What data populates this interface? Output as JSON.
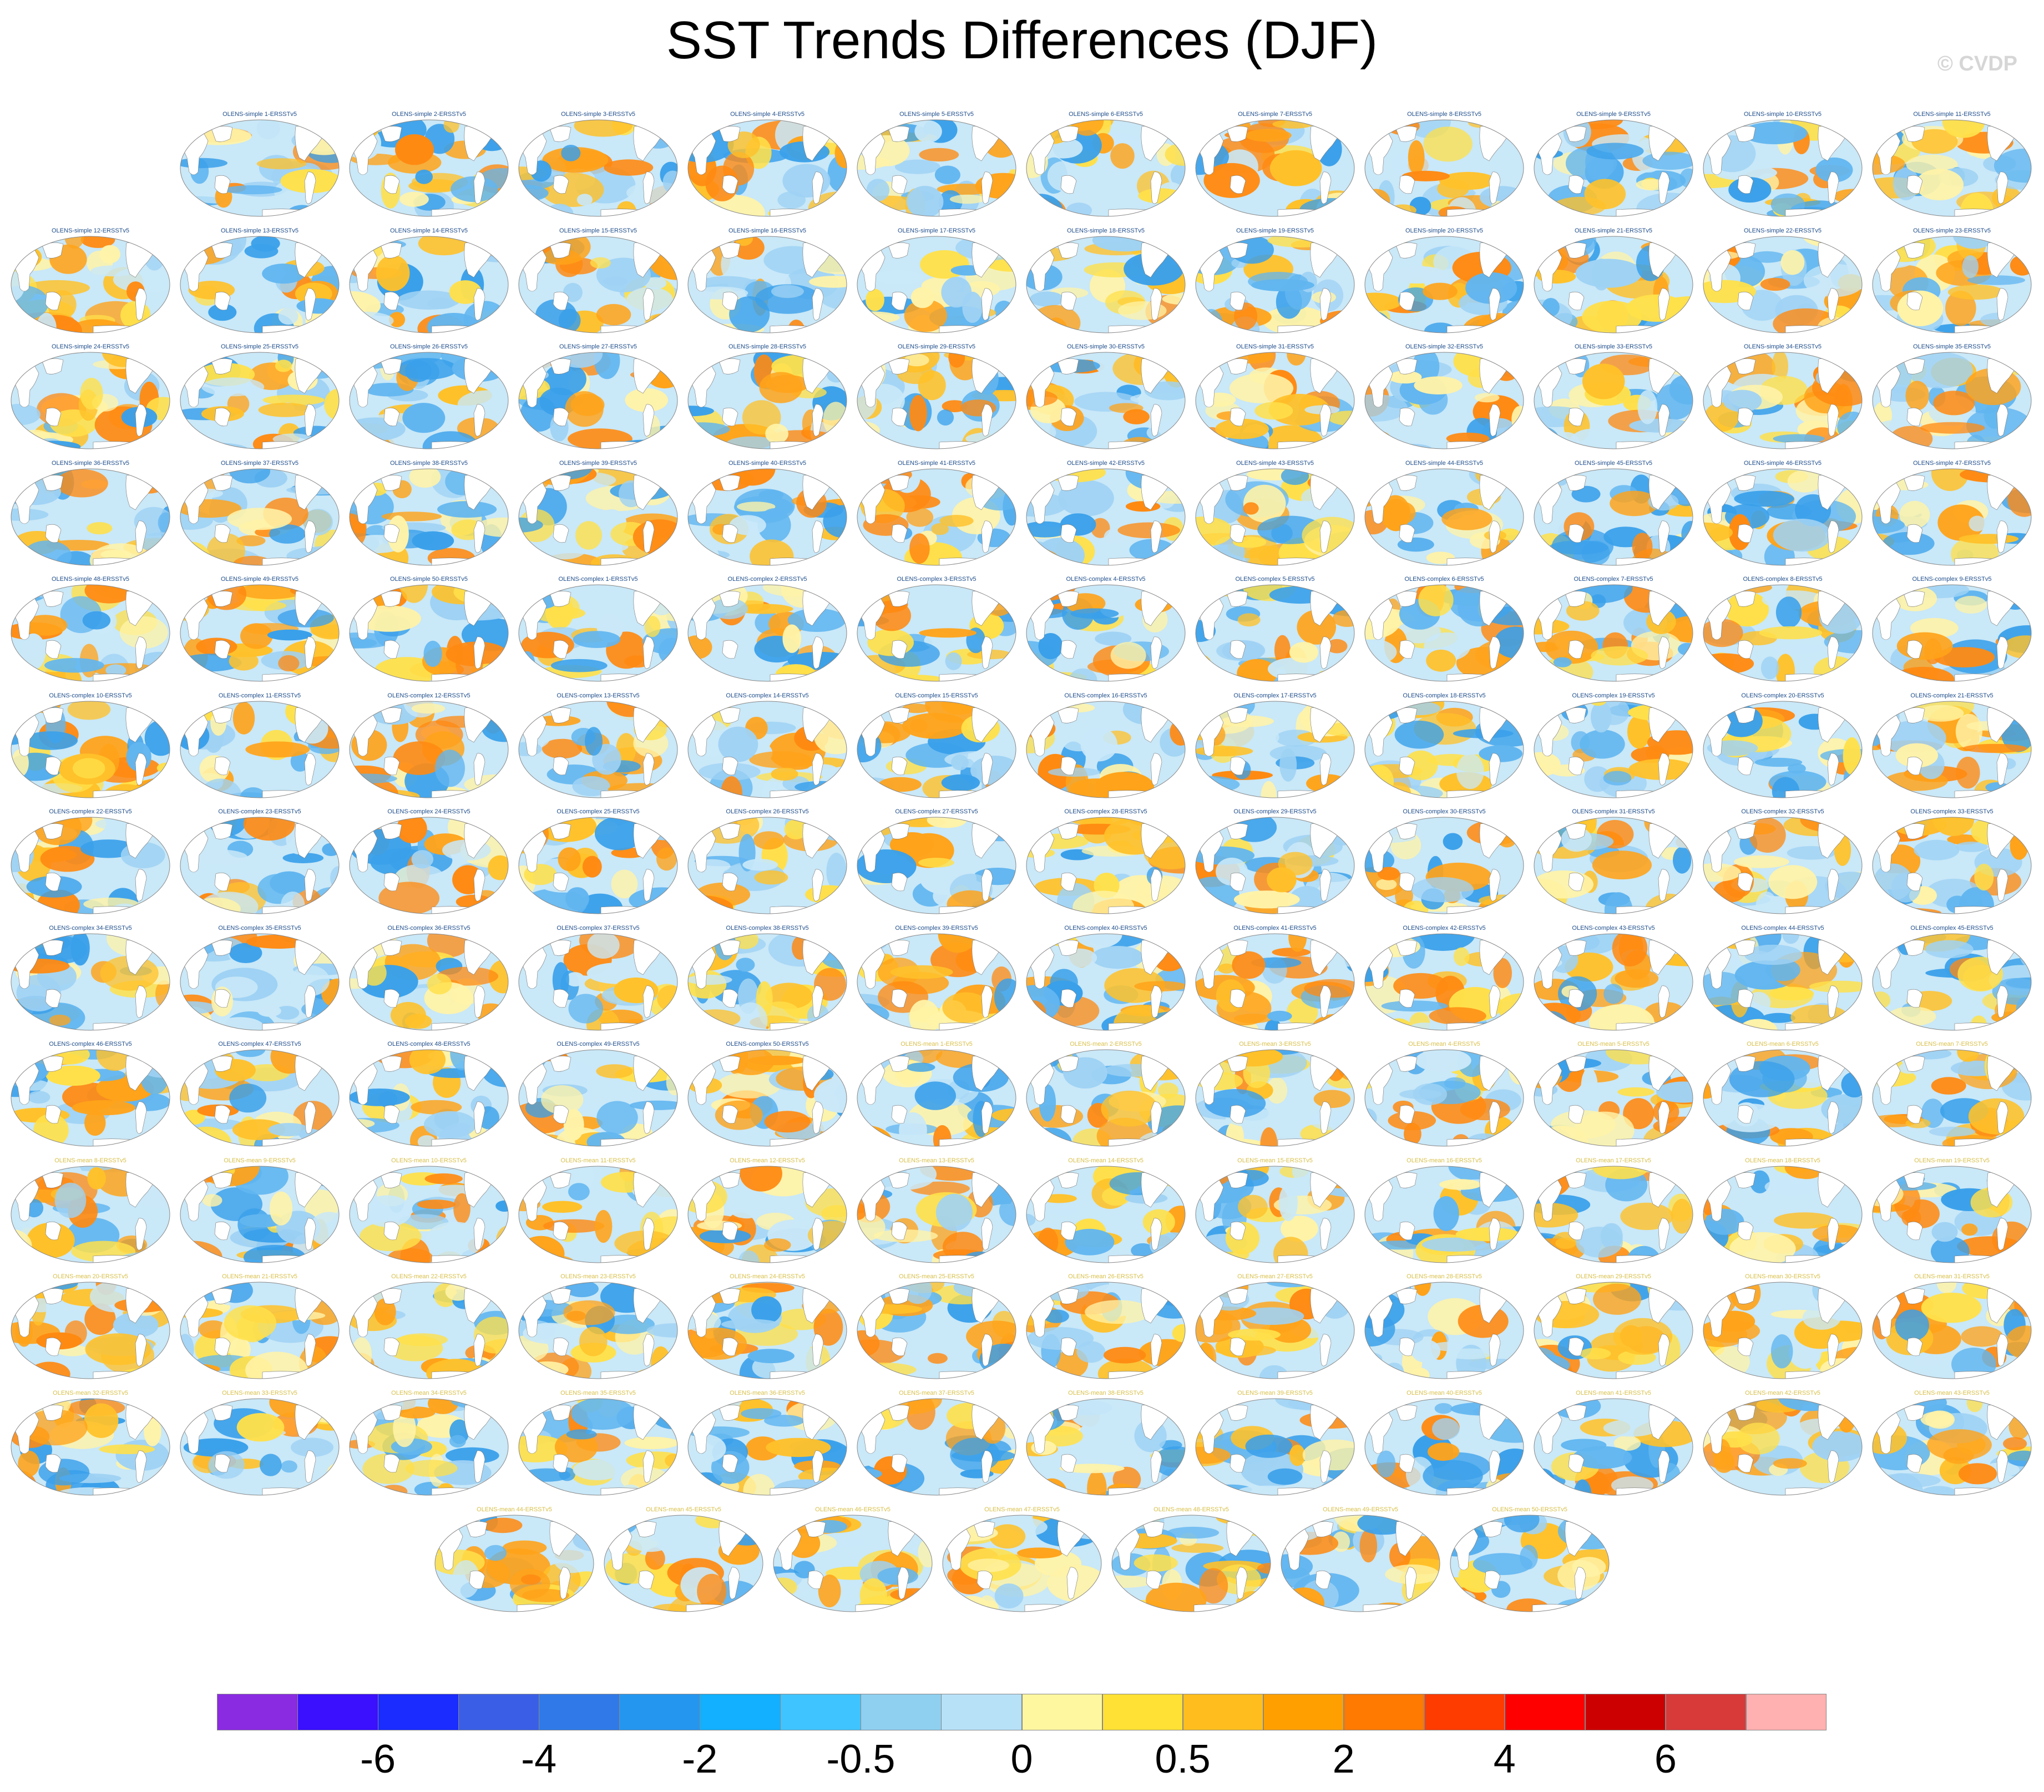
{
  "title": "SST Trends Differences (DJF)",
  "watermark": "© CVDP",
  "map_type": "global-ellipse-sst-trend-difference",
  "panels": [
    "OLENS-simple 1-ERSSTv5",
    "OLENS-simple 2-ERSSTv5",
    "OLENS-simple 3-ERSSTv5",
    "OLENS-simple 4-ERSSTv5",
    "OLENS-simple 5-ERSSTv5",
    "OLENS-simple 6-ERSSTv5",
    "OLENS-simple 7-ERSSTv5",
    "OLENS-simple 8-ERSSTv5",
    "OLENS-simple 9-ERSSTv5",
    "OLENS-simple 10-ERSSTv5",
    "OLENS-simple 11-ERSSTv5",
    "OLENS-simple 12-ERSSTv5",
    "OLENS-simple 13-ERSSTv5",
    "OLENS-simple 14-ERSSTv5",
    "OLENS-simple 15-ERSSTv5",
    "OLENS-simple 16-ERSSTv5",
    "OLENS-simple 17-ERSSTv5",
    "OLENS-simple 18-ERSSTv5",
    "OLENS-simple 19-ERSSTv5",
    "OLENS-simple 20-ERSSTv5",
    "OLENS-simple 21-ERSSTv5",
    "OLENS-simple 22-ERSSTv5",
    "OLENS-simple 23-ERSSTv5",
    "OLENS-simple 24-ERSSTv5",
    "OLENS-simple 25-ERSSTv5",
    "OLENS-simple 26-ERSSTv5",
    "OLENS-simple 27-ERSSTv5",
    "OLENS-simple 28-ERSSTv5",
    "OLENS-simple 29-ERSSTv5",
    "OLENS-simple 30-ERSSTv5",
    "OLENS-simple 31-ERSSTv5",
    "OLENS-simple 32-ERSSTv5",
    "OLENS-simple 33-ERSSTv5",
    "OLENS-simple 34-ERSSTv5",
    "OLENS-simple 35-ERSSTv5",
    "OLENS-simple 36-ERSSTv5",
    "OLENS-simple 37-ERSSTv5",
    "OLENS-simple 38-ERSSTv5",
    "OLENS-simple 39-ERSSTv5",
    "OLENS-simple 40-ERSSTv5",
    "OLENS-simple 41-ERSSTv5",
    "OLENS-simple 42-ERSSTv5",
    "OLENS-simple 43-ERSSTv5",
    "OLENS-simple 44-ERSSTv5",
    "OLENS-simple 45-ERSSTv5",
    "OLENS-simple 46-ERSSTv5",
    "OLENS-simple 47-ERSSTv5",
    "OLENS-simple 48-ERSSTv5",
    "OLENS-simple 49-ERSSTv5",
    "OLENS-simple 50-ERSSTv5",
    "OLENS-complex 1-ERSSTv5",
    "OLENS-complex 2-ERSSTv5",
    "OLENS-complex 3-ERSSTv5",
    "OLENS-complex 4-ERSSTv5",
    "OLENS-complex 5-ERSSTv5",
    "OLENS-complex 6-ERSSTv5",
    "OLENS-complex 7-ERSSTv5",
    "OLENS-complex 8-ERSSTv5",
    "OLENS-complex 9-ERSSTv5",
    "OLENS-complex 10-ERSSTv5",
    "OLENS-complex 11-ERSSTv5",
    "OLENS-complex 12-ERSSTv5",
    "OLENS-complex 13-ERSSTv5",
    "OLENS-complex 14-ERSSTv5",
    "OLENS-complex 15-ERSSTv5",
    "OLENS-complex 16-ERSSTv5",
    "OLENS-complex 17-ERSSTv5",
    "OLENS-complex 18-ERSSTv5",
    "OLENS-complex 19-ERSSTv5",
    "OLENS-complex 20-ERSSTv5",
    "OLENS-complex 21-ERSSTv5",
    "OLENS-complex 22-ERSSTv5",
    "OLENS-complex 23-ERSSTv5",
    "OLENS-complex 24-ERSSTv5",
    "OLENS-complex 25-ERSSTv5",
    "OLENS-complex 26-ERSSTv5",
    "OLENS-complex 27-ERSSTv5",
    "OLENS-complex 28-ERSSTv5",
    "OLENS-complex 29-ERSSTv5",
    "OLENS-complex 30-ERSSTv5",
    "OLENS-complex 31-ERSSTv5",
    "OLENS-complex 32-ERSSTv5",
    "OLENS-complex 33-ERSSTv5",
    "OLENS-complex 34-ERSSTv5",
    "OLENS-complex 35-ERSSTv5",
    "OLENS-complex 36-ERSSTv5",
    "OLENS-complex 37-ERSSTv5",
    "OLENS-complex 38-ERSSTv5",
    "OLENS-complex 39-ERSSTv5",
    "OLENS-complex 40-ERSSTv5",
    "OLENS-complex 41-ERSSTv5",
    "OLENS-complex 42-ERSSTv5",
    "OLENS-complex 43-ERSSTv5",
    "OLENS-complex 44-ERSSTv5",
    "OLENS-complex 45-ERSSTv5",
    "OLENS-complex 46-ERSSTv5",
    "OLENS-complex 47-ERSSTv5",
    "OLENS-complex 48-ERSSTv5",
    "OLENS-complex 49-ERSSTv5",
    "OLENS-complex 50-ERSSTv5",
    "OLENS-mean 1-ERSSTv5",
    "OLENS-mean 2-ERSSTv5",
    "OLENS-mean 3-ERSSTv5",
    "OLENS-mean 4-ERSSTv5",
    "OLENS-mean 5-ERSSTv5",
    "OLENS-mean 6-ERSSTv5",
    "OLENS-mean 7-ERSSTv5",
    "OLENS-mean 8-ERSSTv5",
    "OLENS-mean 9-ERSSTv5",
    "OLENS-mean 10-ERSSTv5",
    "OLENS-mean 11-ERSSTv5",
    "OLENS-mean 12-ERSSTv5",
    "OLENS-mean 13-ERSSTv5",
    "OLENS-mean 14-ERSSTv5",
    "OLENS-mean 15-ERSSTv5",
    "OLENS-mean 16-ERSSTv5",
    "OLENS-mean 17-ERSSTv5",
    "OLENS-mean 18-ERSSTv5",
    "OLENS-mean 19-ERSSTv5",
    "OLENS-mean 20-ERSSTv5",
    "OLENS-mean 21-ERSSTv5",
    "OLENS-mean 22-ERSSTv5",
    "OLENS-mean 23-ERSSTv5",
    "OLENS-mean 24-ERSSTv5",
    "OLENS-mean 25-ERSSTv5",
    "OLENS-mean 26-ERSSTv5",
    "OLENS-mean 27-ERSSTv5",
    "OLENS-mean 28-ERSSTv5",
    "OLENS-mean 29-ERSSTv5",
    "OLENS-mean 30-ERSSTv5",
    "OLENS-mean 31-ERSSTv5",
    "OLENS-mean 32-ERSSTv5",
    "OLENS-mean 33-ERSSTv5",
    "OLENS-mean 34-ERSSTv5",
    "OLENS-mean 35-ERSSTv5",
    "OLENS-mean 36-ERSSTv5",
    "OLENS-mean 37-ERSSTv5",
    "OLENS-mean 38-ERSSTv5",
    "OLENS-mean 39-ERSSTv5",
    "OLENS-mean 40-ERSSTv5",
    "OLENS-mean 41-ERSSTv5",
    "OLENS-mean 42-ERSSTv5",
    "OLENS-mean 43-ERSSTv5",
    "OLENS-mean 44-ERSSTv5",
    "OLENS-mean 45-ERSSTv5",
    "OLENS-mean 46-ERSSTv5",
    "OLENS-mean 47-ERSSTv5",
    "OLENS-mean 48-ERSSTv5",
    "OLENS-mean 49-ERSSTv5",
    "OLENS-mean 50-ERSSTv5"
  ],
  "panel_title_colors": {
    "simple": "#1f4e8c",
    "complex": "#1f4e8c",
    "mean": "#d8c04a"
  },
  "colorbar": {
    "colors": [
      "#8a2be2",
      "#3a10ff",
      "#1a2cff",
      "#3a5fe6",
      "#2f7ae8",
      "#2596f0",
      "#12b0ff",
      "#40c4ff",
      "#8fd0f0",
      "#b7e1f7",
      "#fff7a0",
      "#ffe135",
      "#ffbe1e",
      "#ffa000",
      "#ff7a00",
      "#ff3c00",
      "#ff0000",
      "#cc0000",
      "#d83a3a",
      "#ffb0b0"
    ],
    "labels": [
      {
        "text": "-6",
        "boundary": 2
      },
      {
        "text": "-4",
        "boundary": 4
      },
      {
        "text": "-2",
        "boundary": 6
      },
      {
        "text": "-0.5",
        "boundary": 8
      },
      {
        "text": "0",
        "boundary": 10
      },
      {
        "text": "0.5",
        "boundary": 12
      },
      {
        "text": "2",
        "boundary": 14
      },
      {
        "text": "4",
        "boundary": 16
      },
      {
        "text": "6",
        "boundary": 18
      }
    ]
  }
}
